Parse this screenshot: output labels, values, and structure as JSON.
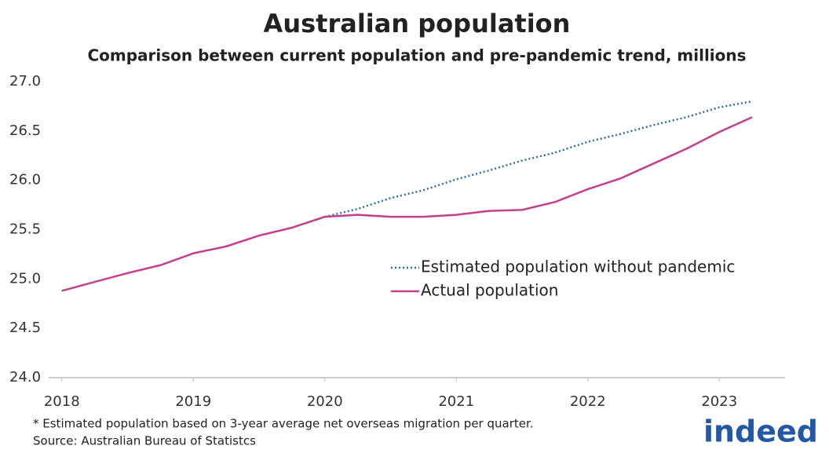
{
  "chart_data": {
    "type": "line",
    "title": "Australian population",
    "subtitle": "Comparison between current population and pre-pandemic trend, millions",
    "footnote": "* Estimated population based on 3-year average net overseas migration per quarter.",
    "source": "Source: Australian Bureau of Statistcs",
    "logo": "indeed",
    "x": [
      2018,
      2018.25,
      2018.5,
      2018.75,
      2019,
      2019.25,
      2019.5,
      2019.75,
      2020,
      2020.25,
      2020.5,
      2020.75,
      2021,
      2021.25,
      2021.5,
      2021.75,
      2022,
      2022.25,
      2022.5,
      2022.75,
      2023,
      2023.25
    ],
    "series": [
      {
        "name": "Estimated population without pandemic",
        "color": "#2e6da4",
        "dash": "dotted",
        "values": [
          null,
          null,
          null,
          null,
          null,
          null,
          null,
          null,
          25.63,
          25.71,
          25.82,
          25.9,
          26.01,
          26.1,
          26.2,
          26.28,
          26.39,
          26.47,
          26.56,
          26.64,
          26.74,
          26.8
        ]
      },
      {
        "name": "Actual population",
        "color": "#c4408a",
        "dash": "solid",
        "values": [
          24.88,
          24.97,
          25.06,
          25.14,
          25.26,
          25.33,
          25.44,
          25.52,
          25.63,
          25.65,
          25.63,
          25.63,
          25.65,
          25.69,
          25.7,
          25.78,
          25.91,
          26.02,
          26.17,
          26.32,
          26.49,
          26.64
        ]
      }
    ],
    "xlim": [
      2017.9,
      2023.5
    ],
    "xticks": [
      2018,
      2019,
      2020,
      2021,
      2022,
      2023
    ],
    "ylim": [
      24,
      27
    ],
    "yticks": [
      {
        "value": 24,
        "label": "24.0"
      },
      {
        "value": 24.5,
        "label": "24.5"
      },
      {
        "value": 25,
        "label": "25.0"
      },
      {
        "value": 25.5,
        "label": "25.5"
      },
      {
        "value": 26,
        "label": "26.0"
      },
      {
        "value": 26.5,
        "label": "26.5"
      },
      {
        "value": 27,
        "label": "27.0"
      }
    ],
    "grid": false,
    "legend": "center-right"
  }
}
